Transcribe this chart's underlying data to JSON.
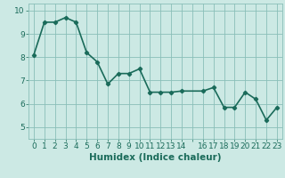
{
  "xlabel": "Humidex (Indice chaleur)",
  "x": [
    0,
    1,
    2,
    3,
    4,
    5,
    6,
    7,
    8,
    9,
    10,
    11,
    12,
    13,
    14,
    16,
    17,
    18,
    19,
    20,
    21,
    22,
    23
  ],
  "y": [
    8.1,
    9.5,
    9.5,
    9.7,
    9.5,
    8.2,
    7.8,
    6.85,
    7.3,
    7.3,
    7.5,
    6.5,
    6.5,
    6.5,
    6.55,
    6.55,
    6.7,
    5.85,
    5.85,
    6.5,
    6.2,
    5.3,
    5.85
  ],
  "line_color": "#1a6b5a",
  "marker": "D",
  "marker_size": 2.2,
  "bg_color": "#cce9e4",
  "grid_color": "#8abfb8",
  "label_color": "#1a6b5a",
  "ylim": [
    4.5,
    10.3
  ],
  "yticks": [
    5,
    6,
    7,
    8,
    9,
    10
  ],
  "xtick_labels": [
    "0",
    "1",
    "2",
    "3",
    "4",
    "5",
    "6",
    "7",
    "8",
    "9",
    "10",
    "11",
    "12",
    "13",
    "14",
    "",
    "16",
    "17",
    "18",
    "19",
    "20",
    "21",
    "22",
    "23"
  ],
  "xlabel_fontsize": 7.5,
  "tick_fontsize": 6.5,
  "line_width": 1.2
}
